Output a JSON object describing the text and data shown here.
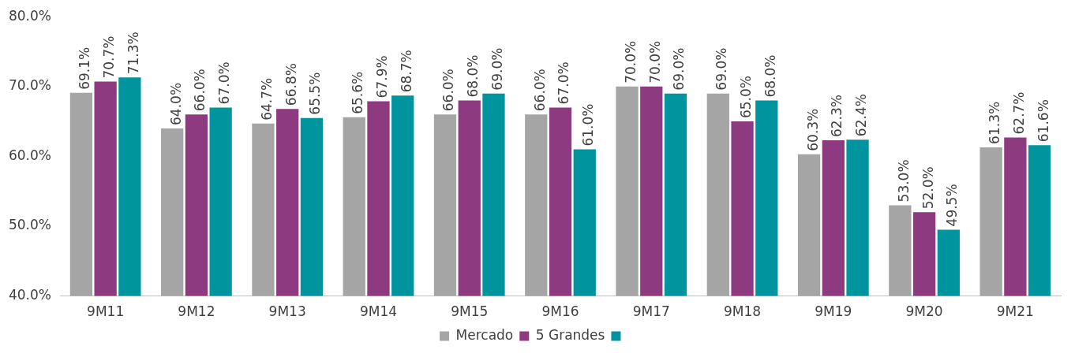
{
  "chart_data": {
    "type": "bar",
    "categories": [
      "9M11",
      "9M12",
      "9M13",
      "9M14",
      "9M15",
      "9M16",
      "9M17",
      "9M18",
      "9M19",
      "9M20",
      "9M21"
    ],
    "series": [
      {
        "name": "Mercado",
        "color": "#a5a5a5",
        "values": [
          69.1,
          64.0,
          64.7,
          65.6,
          66.0,
          66.0,
          70.0,
          69.0,
          60.3,
          53.0,
          61.3
        ],
        "value_labels": [
          "69.1%",
          "64.0%",
          "64.7%",
          "65.6%",
          "66.0%",
          "66.0%",
          "70.0%",
          "69.0%",
          "60.3%",
          "53.0%",
          "61.3%"
        ]
      },
      {
        "name": "5 Grandes",
        "color": "#8e3a80",
        "values": [
          70.7,
          66.0,
          66.8,
          67.9,
          68.0,
          67.0,
          70.0,
          65.0,
          62.3,
          52.0,
          62.7
        ],
        "value_labels": [
          "70.7%",
          "66.0%",
          "66.8%",
          "67.9%",
          "68.0%",
          "67.0%",
          "70.0%",
          "65.0%",
          "62.3%",
          "52.0%",
          "62.7%"
        ]
      },
      {
        "color": "#00959e",
        "values": [
          71.3,
          67.0,
          65.5,
          68.7,
          69.0,
          61.0,
          69.0,
          68.0,
          62.4,
          49.5,
          61.6
        ],
        "value_labels": [
          "71.3%",
          "67.0%",
          "65.5%",
          "68.7%",
          "69.0%",
          "61.0%",
          "69.0%",
          "68.0%",
          "62.4%",
          "49.5%",
          "61.6%"
        ]
      }
    ],
    "ylim": [
      40,
      80
    ],
    "yticks": [
      {
        "value": 40,
        "label": "40.0%"
      },
      {
        "value": 50,
        "label": "50.0%"
      },
      {
        "value": 60,
        "label": "60.0%"
      },
      {
        "value": 70,
        "label": "70.0%"
      },
      {
        "value": 80,
        "label": "80.0%"
      }
    ],
    "grid": false,
    "legend": "bottom"
  }
}
